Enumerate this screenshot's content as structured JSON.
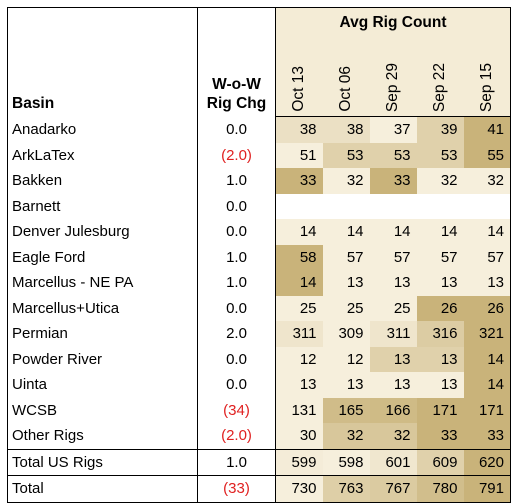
{
  "header": {
    "basin_label": "Basin",
    "chg_label_line1": "W-o-W",
    "chg_label_line2": "Rig Chg",
    "avg_label": "Avg Rig Count",
    "dates": [
      "Oct 13",
      "Oct 06",
      "Sep 29",
      "Sep 22",
      "Sep 15"
    ]
  },
  "rows": [
    {
      "basin": "Anadarko",
      "chg": "0.0",
      "values": [
        "38",
        "38",
        "37",
        "39",
        "41"
      ]
    },
    {
      "basin": "ArkLaTex",
      "chg": "(2.0)",
      "values": [
        "51",
        "53",
        "53",
        "53",
        "55"
      ]
    },
    {
      "basin": "Bakken",
      "chg": "1.0",
      "values": [
        "33",
        "32",
        "33",
        "32",
        "32"
      ]
    },
    {
      "basin": "Barnett",
      "chg": "0.0",
      "values": [
        "",
        "",
        "",
        "",
        ""
      ]
    },
    {
      "basin": "Denver Julesburg",
      "chg": "0.0",
      "values": [
        "14",
        "14",
        "14",
        "14",
        "14"
      ]
    },
    {
      "basin": "Eagle Ford",
      "chg": "1.0",
      "values": [
        "58",
        "57",
        "57",
        "57",
        "57"
      ]
    },
    {
      "basin": "Marcellus - NE PA",
      "chg": "1.0",
      "values": [
        "14",
        "13",
        "13",
        "13",
        "13"
      ]
    },
    {
      "basin": "Marcellus+Utica",
      "chg": "0.0",
      "values": [
        "25",
        "25",
        "25",
        "26",
        "26"
      ]
    },
    {
      "basin": "Permian",
      "chg": "2.0",
      "values": [
        "311",
        "309",
        "311",
        "316",
        "321"
      ]
    },
    {
      "basin": "Powder River",
      "chg": "0.0",
      "values": [
        "12",
        "12",
        "13",
        "13",
        "14"
      ]
    },
    {
      "basin": "Uinta",
      "chg": "0.0",
      "values": [
        "13",
        "13",
        "13",
        "13",
        "14"
      ]
    },
    {
      "basin": "WCSB",
      "chg": "(34)",
      "values": [
        "131",
        "165",
        "166",
        "171",
        "171"
      ]
    },
    {
      "basin": "Other Rigs",
      "chg": "(2.0)",
      "values": [
        "30",
        "32",
        "32",
        "33",
        "33"
      ]
    },
    {
      "basin": "Total US Rigs",
      "chg": "1.0",
      "values": [
        "599",
        "598",
        "601",
        "609",
        "620"
      ]
    },
    {
      "basin": "Total",
      "chg": "(33)",
      "values": [
        "730",
        "763",
        "767",
        "780",
        "791"
      ]
    }
  ],
  "colors": {
    "negative": "#e02020",
    "heat_low": "#f6efdc",
    "heat_high": "#c9b37a",
    "header_bg": "#f4ecd6"
  }
}
